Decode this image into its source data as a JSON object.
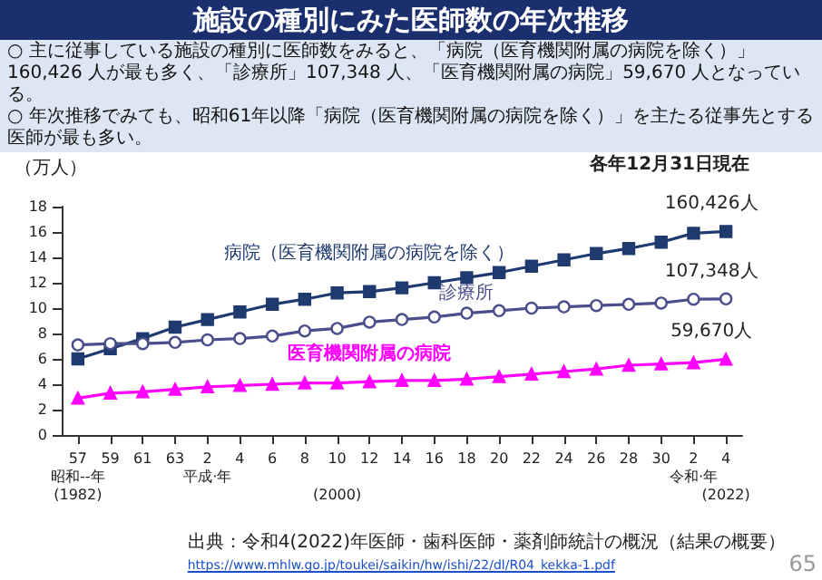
{
  "chart_data": {
    "type": "line",
    "title": "施設の種別にみた医師数の年次推移",
    "subtitle": "○ 主に従事している施設の種別に医師数をみると、「病院（医育機関附属の病院を除く）」160,426 人が最も多く、「診療所」107,348 人、「医育機関附属の病院」59,670 人となっている。\n○ 年次推移でみても、昭和61年以降「病院（医育機関附属の病院を除く）」を主たる従事先とする医師が最も多い。",
    "ylabel": "（万人）",
    "categories": [
      "57\n昭和--年\n(1982)",
      "59",
      "61",
      "63",
      "2\n平成·年",
      "4",
      "6",
      "8",
      "10\n\n(2000)",
      "12",
      "14",
      "16",
      "18",
      "20",
      "22",
      "24",
      "26",
      "28",
      "30",
      "2\n令和·年",
      "4\n\n(2022)"
    ],
    "series": [
      {
        "name": "病院（医育機関附属の病院を除く）",
        "color": "#1f3a6e",
        "marker": "square",
        "values": [
          6.0,
          6.8,
          7.6,
          8.5,
          9.1,
          9.7,
          10.3,
          10.7,
          11.2,
          11.3,
          11.6,
          12.0,
          12.4,
          12.8,
          13.3,
          13.8,
          14.3,
          14.7,
          15.2,
          15.9,
          16.04
        ]
      },
      {
        "name": "診療所",
        "color": "#4a4f8c",
        "marker": "circle",
        "values": [
          7.1,
          7.2,
          7.2,
          7.3,
          7.5,
          7.6,
          7.8,
          8.2,
          8.4,
          8.9,
          9.1,
          9.3,
          9.6,
          9.8,
          10.0,
          10.1,
          10.2,
          10.3,
          10.4,
          10.7,
          10.73
        ]
      },
      {
        "name": "医育機関附属の病院",
        "color": "#ff00ff",
        "marker": "triangle",
        "values": [
          2.9,
          3.3,
          3.4,
          3.6,
          3.8,
          3.9,
          4.0,
          4.1,
          4.1,
          4.2,
          4.3,
          4.3,
          4.4,
          4.6,
          4.8,
          5.0,
          5.2,
          5.5,
          5.6,
          5.7,
          5.97
        ]
      }
    ],
    "ylim": [
      0,
      18
    ],
    "yticks": [
      0,
      2,
      4,
      6,
      8,
      10,
      12,
      14,
      16,
      18
    ],
    "grid": false,
    "legend": false,
    "annotations": [
      "各年12月31日現在",
      "出典：令和4(2022)年医師・歯科医師・薬剤師統計の概況（結果の概要）",
      "https://www.mhlw.go.jp/toukei/saikin/hw/ishi/22/dl/R04_kekka-1.pdf",
      "65",
      {
        "text": "160,426人",
        "x": "4\n\n(2022)",
        "y": 16.04
      },
      {
        "text": "107,348人",
        "x": "4\n\n(2022)",
        "y": 10.73
      },
      {
        "text": "59,670人",
        "x": "4\n\n(2022)",
        "y": 5.97
      }
    ]
  }
}
